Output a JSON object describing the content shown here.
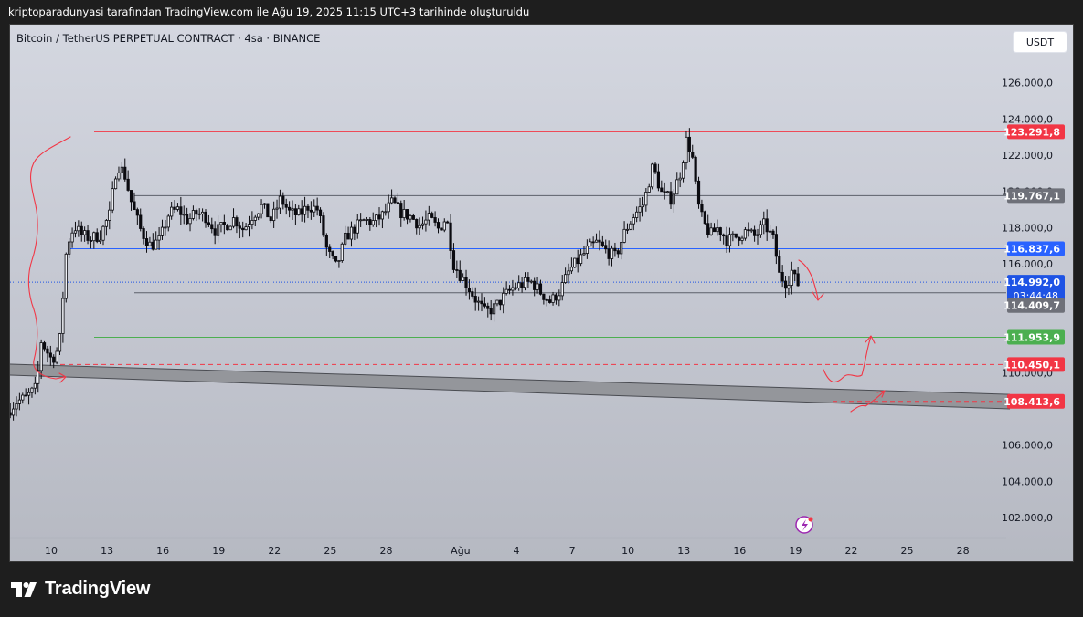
{
  "caption": "kriptoparadunyasi tarafından TradingView.com ile Ağu 19, 2025 11:15 UTC+3 tarihinde oluşturuldu",
  "symbol_title": "Bitcoin / TetherUS PERPETUAL CONTRACT · 4sa · BINANCE",
  "currency_button": "USDT",
  "footer_brand": "TradingView",
  "colors": {
    "frame_bg": "#c9ccd5",
    "candle": "#0b0b10",
    "resistance_red": "#f23645",
    "blue_level": "#2962ff",
    "green_level": "#4caf50",
    "gray_level": "#5d606b",
    "current_price": "#1e53e5",
    "support_band": "#8f9196"
  },
  "chart_data": {
    "type": "candlestick",
    "title": "Bitcoin / TetherUS PERPETUAL CONTRACT · 4sa · BINANCE",
    "ylim": [
      100900,
      129200
    ],
    "y_ticks": [
      {
        "value": 126000,
        "label": "126.000,0"
      },
      {
        "value": 124000,
        "label": "124.000,0"
      },
      {
        "value": 122000,
        "label": "122.000,0"
      },
      {
        "value": 120000,
        "label": "120.000,0"
      },
      {
        "value": 118000,
        "label": "118.000,0"
      },
      {
        "value": 116000,
        "label": "116.000,0"
      },
      {
        "value": 110000,
        "label": "110.000,0"
      },
      {
        "value": 106000,
        "label": "106.000,0"
      },
      {
        "value": 104000,
        "label": "104.000,0"
      },
      {
        "value": 102000,
        "label": "102.000,0"
      }
    ],
    "x_ticks": [
      {
        "day": 10,
        "label": "10"
      },
      {
        "day": 13,
        "label": "13"
      },
      {
        "day": 16,
        "label": "16"
      },
      {
        "day": 19,
        "label": "19"
      },
      {
        "day": 22,
        "label": "22"
      },
      {
        "day": 25,
        "label": "25"
      },
      {
        "day": 28,
        "label": "28"
      },
      {
        "day": 32,
        "label": "Ağu"
      },
      {
        "day": 35,
        "label": "4"
      },
      {
        "day": 38,
        "label": "7"
      },
      {
        "day": 41,
        "label": "10"
      },
      {
        "day": 44,
        "label": "13"
      },
      {
        "day": 47,
        "label": "16"
      },
      {
        "day": 50,
        "label": "19"
      },
      {
        "day": 53,
        "label": "22"
      },
      {
        "day": 56,
        "label": "25"
      },
      {
        "day": 59,
        "label": "28"
      }
    ],
    "x_unit": "day (Jul 1 = day 1, Aug 1 = day 32)",
    "candles_per_day": 6,
    "first_candle_day": 7.8,
    "price_path": [
      [
        7.8,
        107800
      ],
      [
        8.3,
        108400
      ],
      [
        8.8,
        108600
      ],
      [
        9.4,
        109200
      ],
      [
        9.6,
        111800
      ],
      [
        10.2,
        110700
      ],
      [
        10.6,
        111400
      ],
      [
        11.0,
        117000
      ],
      [
        11.4,
        118100
      ],
      [
        11.8,
        117600
      ],
      [
        12.3,
        117400
      ],
      [
        12.8,
        117600
      ],
      [
        13.3,
        118700
      ],
      [
        13.7,
        121500
      ],
      [
        14.1,
        121000
      ],
      [
        14.5,
        119300
      ],
      [
        15.0,
        117800
      ],
      [
        15.5,
        117000
      ],
      [
        16.0,
        117300
      ],
      [
        16.5,
        118800
      ],
      [
        17.0,
        119000
      ],
      [
        17.5,
        118400
      ],
      [
        18.0,
        118800
      ],
      [
        18.5,
        118600
      ],
      [
        19.0,
        117800
      ],
      [
        19.5,
        118100
      ],
      [
        20.0,
        118500
      ],
      [
        20.5,
        117900
      ],
      [
        21.0,
        118700
      ],
      [
        21.5,
        119200
      ],
      [
        22.0,
        118400
      ],
      [
        22.5,
        119600
      ],
      [
        23.0,
        118800
      ],
      [
        23.5,
        118700
      ],
      [
        24.0,
        119200
      ],
      [
        24.5,
        119000
      ],
      [
        25.0,
        116700
      ],
      [
        25.5,
        115800
      ],
      [
        26.0,
        117500
      ],
      [
        26.5,
        118000
      ],
      [
        27.0,
        118400
      ],
      [
        27.5,
        118300
      ],
      [
        28.0,
        118700
      ],
      [
        28.5,
        119400
      ],
      [
        29.0,
        118800
      ],
      [
        29.5,
        118600
      ],
      [
        30.0,
        118100
      ],
      [
        30.5,
        118500
      ],
      [
        31.0,
        117900
      ],
      [
        31.4,
        118600
      ],
      [
        31.8,
        116000
      ],
      [
        32.2,
        115300
      ],
      [
        32.6,
        114700
      ],
      [
        33.0,
        114000
      ],
      [
        33.5,
        113300
      ],
      [
        34.0,
        113600
      ],
      [
        34.5,
        114200
      ],
      [
        35.0,
        114700
      ],
      [
        35.5,
        114900
      ],
      [
        36.0,
        115000
      ],
      [
        36.5,
        114400
      ],
      [
        37.0,
        113900
      ],
      [
        37.5,
        114500
      ],
      [
        38.0,
        115600
      ],
      [
        38.5,
        116200
      ],
      [
        39.0,
        116800
      ],
      [
        39.5,
        117200
      ],
      [
        40.0,
        116700
      ],
      [
        40.5,
        116400
      ],
      [
        41.0,
        117800
      ],
      [
        41.5,
        118700
      ],
      [
        42.0,
        119300
      ],
      [
        42.5,
        121400
      ],
      [
        43.0,
        119800
      ],
      [
        43.5,
        119600
      ],
      [
        44.0,
        121100
      ],
      [
        44.3,
        122800
      ],
      [
        44.6,
        122100
      ],
      [
        44.9,
        119400
      ],
      [
        45.2,
        118300
      ],
      [
        45.6,
        117600
      ],
      [
        46.0,
        118000
      ],
      [
        46.5,
        117300
      ],
      [
        47.0,
        117500
      ],
      [
        47.5,
        117800
      ],
      [
        48.0,
        117500
      ],
      [
        48.5,
        118200
      ],
      [
        49.0,
        117300
      ],
      [
        49.3,
        115400
      ],
      [
        49.7,
        114900
      ],
      [
        50.0,
        115700
      ],
      [
        50.2,
        114900
      ]
    ],
    "levels": [
      {
        "name": "resistance-red",
        "value": 123291.8,
        "label": "123.291,8",
        "color": "#f23645",
        "style": "solid"
      },
      {
        "name": "range-high",
        "value": 119767.1,
        "label": "119.767,1",
        "color": "#5d606b",
        "style": "solid"
      },
      {
        "name": "blue-level",
        "value": 116837.6,
        "label": "116.837,6",
        "color": "#2962ff",
        "style": "solid"
      },
      {
        "name": "current-price",
        "value": 114992.0,
        "label": "114.992,0",
        "sublabel": "03:44:48",
        "color": "#1e53e5",
        "style": "dotted"
      },
      {
        "name": "range-low",
        "value": 114409.7,
        "label": "114.409,7",
        "color": "#5d606b",
        "style": "solid"
      },
      {
        "name": "support-green",
        "value": 111953.9,
        "label": "111.953,9",
        "color": "#4caf50",
        "style": "solid"
      },
      {
        "name": "dashed-red-upper",
        "value": 110450.1,
        "label": "110.450,1",
        "color": "#f23645",
        "style": "dashed"
      },
      {
        "name": "dashed-red-lower",
        "value": 108413.6,
        "label": "108.413,6",
        "color": "#f23645",
        "style": "dashed"
      }
    ],
    "support_band": {
      "start_day": 7.8,
      "start_low": 109900,
      "start_high": 110500,
      "end_day": 61.5,
      "end_low": 108000,
      "end_high": 108800
    },
    "grid": false,
    "legend": "none"
  }
}
